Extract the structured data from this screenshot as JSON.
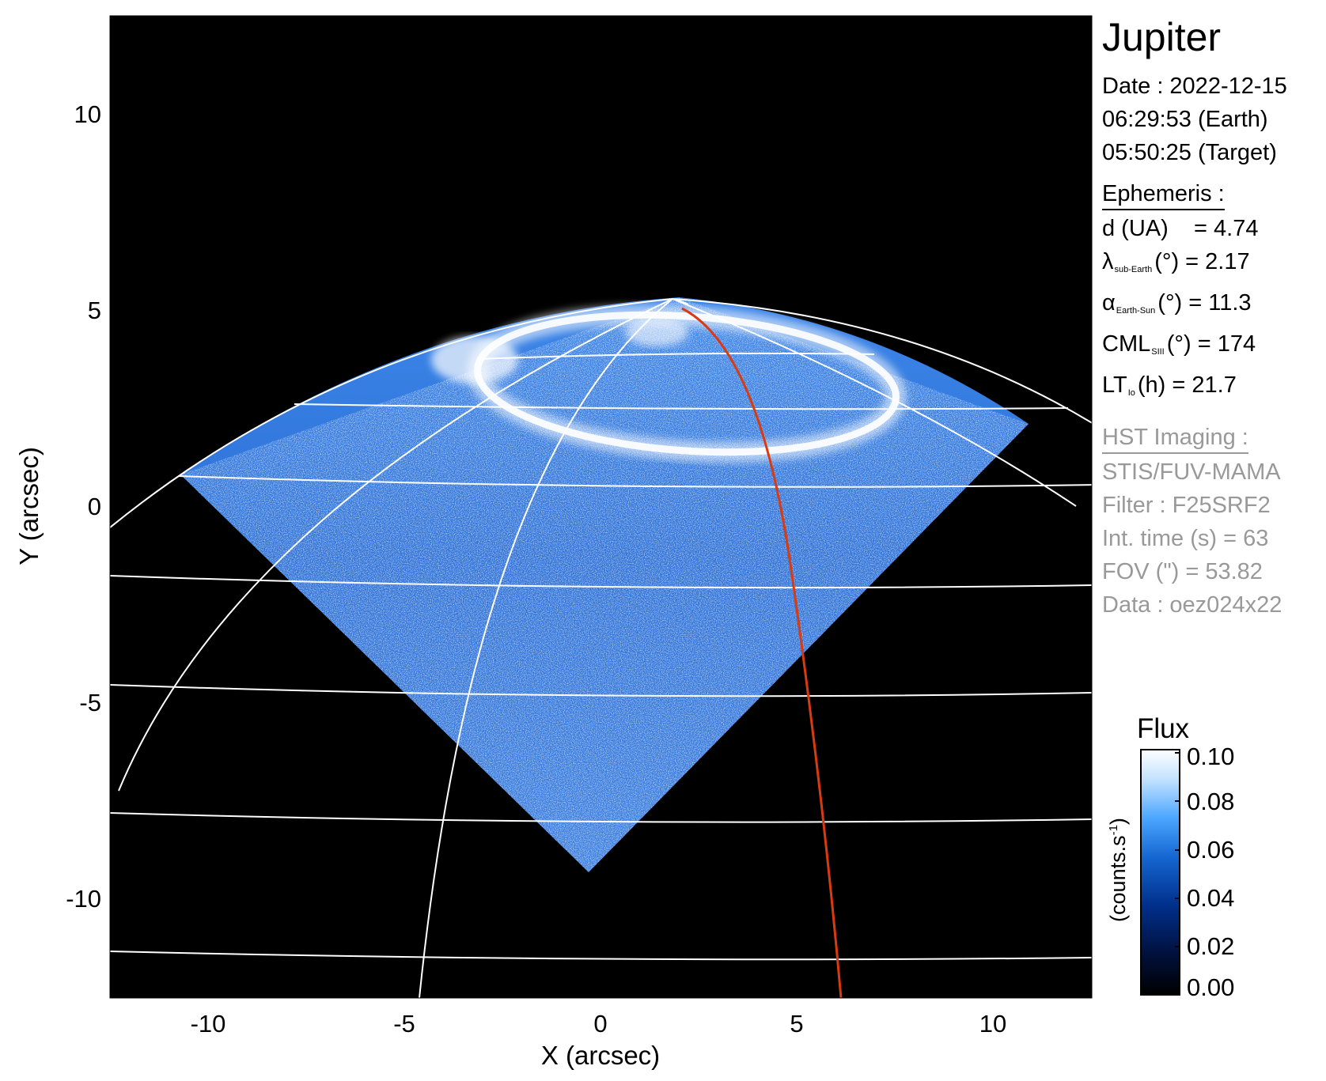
{
  "planet": "Jupiter",
  "observation": {
    "date_line": "Date : 2022-12-15",
    "earth_time": "06:29:53 (Earth)",
    "target_time": "05:50:25 (Target)"
  },
  "ephemeris": {
    "heading": "Ephemeris :",
    "d_label": "d (UA)",
    "d_value": "= 4.74",
    "lambda_symbol": "λ",
    "lambda_sub": "sub-Earth",
    "lambda_value": "(°) = 2.17",
    "alpha_symbol": "α",
    "alpha_sub": "Earth-Sun",
    "alpha_value": "(°) = 11.3",
    "cml_symbol": "CML",
    "cml_sub": "SIII",
    "cml_value": "(°) = 174",
    "lt_symbol": "LT",
    "lt_sub": "Io",
    "lt_value": "(h) = 21.7"
  },
  "imaging": {
    "heading": "HST Imaging :",
    "instrument": "STIS/FUV-MAMA",
    "filter": "Filter : F25SRF2",
    "int_time": "Int. time (s) = 63",
    "fov": "FOV (\") = 53.82",
    "data": "Data : oez024x22"
  },
  "axes": {
    "x_label": "X (arcsec)",
    "y_label": "Y (arcsec)",
    "x_ticks": [
      "-10",
      "-5",
      "0",
      "5",
      "10"
    ],
    "y_ticks": [
      "10",
      "5",
      "0",
      "-5",
      "-10"
    ],
    "range": [
      -12.5,
      12.5
    ]
  },
  "colorbar": {
    "title": "Flux",
    "unit_label": "(counts.s",
    "unit_exp": "-1",
    "unit_close": ")",
    "ticks": [
      "0.10",
      "0.08",
      "0.06",
      "0.04",
      "0.02",
      "0.00"
    ],
    "range": [
      0.0,
      0.1
    ],
    "colors": [
      "#000000",
      "#00103a",
      "#002e8a",
      "#1466d0",
      "#4aa6ff",
      "#c4e2ff",
      "#ffffff"
    ]
  },
  "overlay_colors": {
    "grid": "#ffffff",
    "meridian": "#d93a10",
    "background": "#000000"
  }
}
